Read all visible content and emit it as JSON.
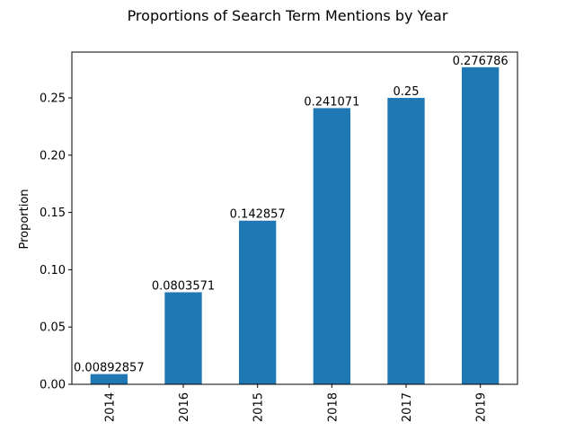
{
  "chart_data": {
    "type": "bar",
    "title": "Proportions of Search Term Mentions by Year",
    "xlabel": "",
    "ylabel": "Proportion",
    "categories": [
      "2014",
      "2016",
      "2015",
      "2018",
      "2017",
      "2019"
    ],
    "values": [
      0.00892857,
      0.0803571,
      0.142857,
      0.241071,
      0.25,
      0.276786
    ],
    "data_labels": [
      "0.00892857",
      "0.0803571",
      "0.142857",
      "0.241071",
      "0.25",
      "0.276786"
    ],
    "ylim": [
      0,
      0.29
    ],
    "yticks": [
      0.0,
      0.05,
      0.1,
      0.15,
      0.2,
      0.25
    ],
    "ytick_labels": [
      "0.00",
      "0.05",
      "0.10",
      "0.15",
      "0.20",
      "0.25"
    ],
    "bar_color": "#1f77b4",
    "grid": false,
    "legend": "none"
  }
}
